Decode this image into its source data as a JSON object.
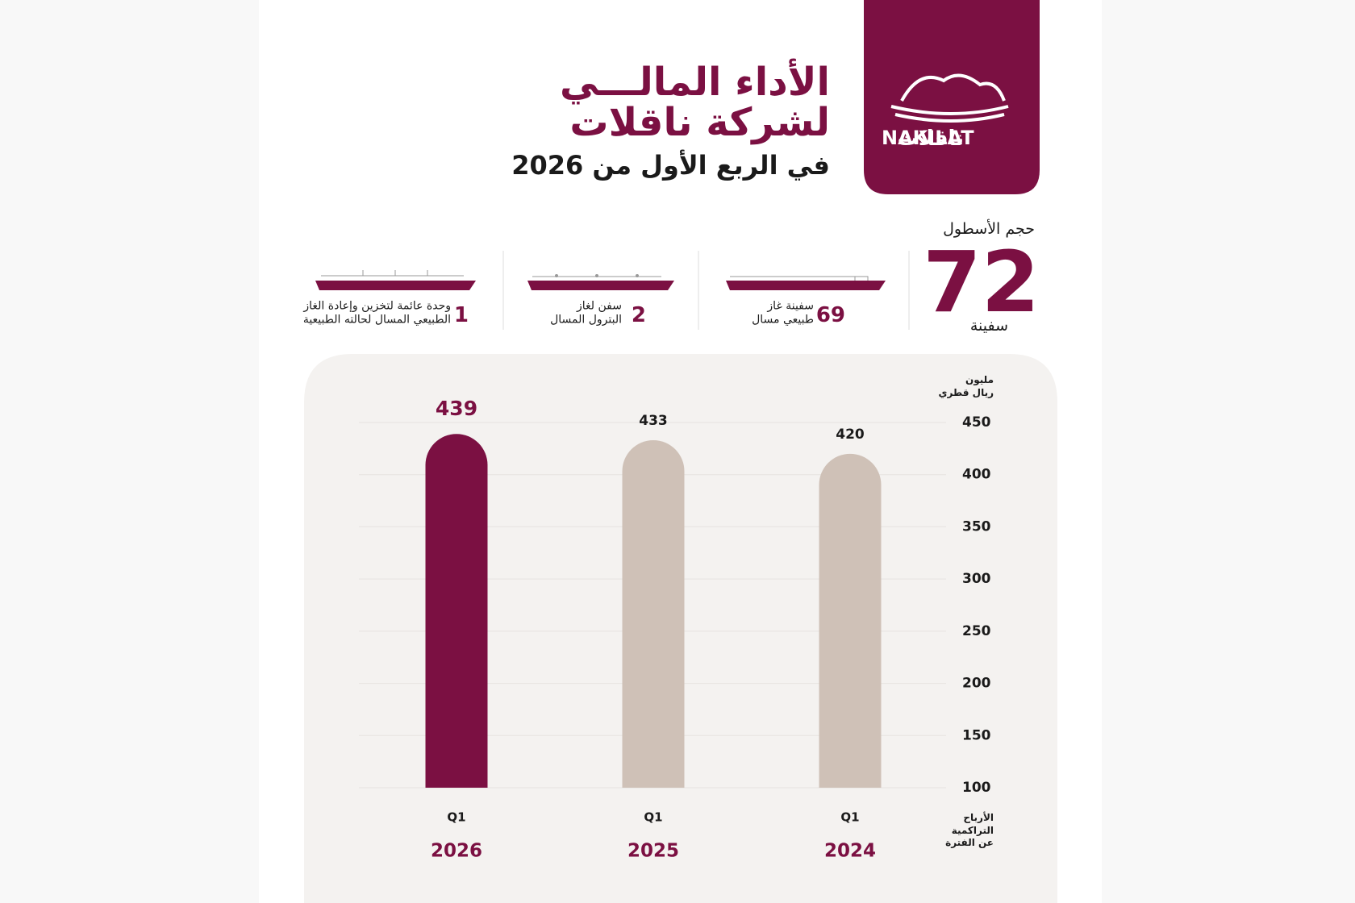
{
  "header": {
    "title_lines": [
      "الأداء المالـــي",
      "لشركة ناقلات"
    ],
    "subtitle": "في الربع الأول من 2026"
  },
  "logo": {
    "latin": "NAKILAT",
    "arabic": "ناقلات"
  },
  "fleet": {
    "label": "حجم الأسطول",
    "total": 72,
    "unit": "سفينة",
    "items": [
      {
        "count": 69,
        "label": [
          "سفينة غاز",
          "طبيعي مسال"
        ]
      },
      {
        "count": 2,
        "label": [
          "سفن لغاز",
          "البترول المسال"
        ]
      },
      {
        "count": 1,
        "label": [
          "وحدة عائمة لتخزين وإعادة الغاز",
          "الطبيعي المسال لحالته الطبيعية"
        ]
      }
    ]
  },
  "chart_data": {
    "type": "bar",
    "unit_label": [
      "مليون",
      "ريال قطري"
    ],
    "side_label": [
      "الأرباح",
      "التراكمية",
      "عن الفترة"
    ],
    "categories": [
      "2026",
      "2025",
      "2024"
    ],
    "quarters": [
      "Q1",
      "Q1",
      "Q1"
    ],
    "values": [
      439,
      433,
      420
    ],
    "colors": [
      "#7b1042",
      "#cfc1b7",
      "#cfc1b7"
    ],
    "ylim": [
      100,
      450
    ],
    "yticks": [
      100,
      150,
      200,
      250,
      300,
      350,
      400,
      450
    ],
    "grid": true
  }
}
